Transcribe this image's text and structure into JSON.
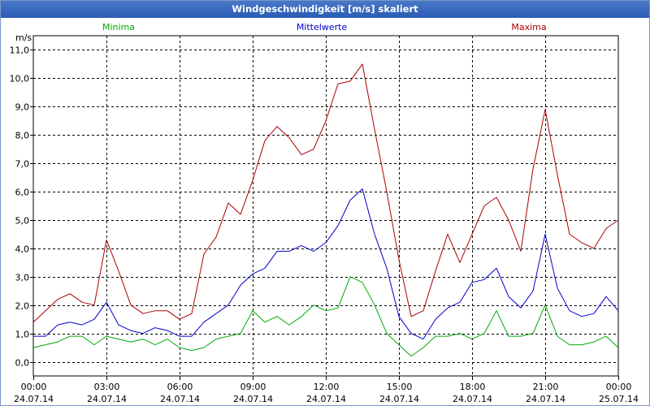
{
  "window": {
    "title": "Windgeschwindigkeit [m/s] skaliert"
  },
  "chart_data": {
    "type": "line",
    "title": "Windgeschwindigkeit [m/s] skaliert",
    "ylabel": "m/s",
    "xlabel": "",
    "ylim": [
      -0.5,
      11.5
    ],
    "xlim": [
      0,
      24
    ],
    "grid": true,
    "y_ticks": [
      "0,0",
      "1,0",
      "2,0",
      "3,0",
      "4,0",
      "5,0",
      "6,0",
      "7,0",
      "8,0",
      "9,0",
      "10,0",
      "11,0"
    ],
    "x_ticks": [
      {
        "time": "00:00",
        "date": "24.07.14"
      },
      {
        "time": "03:00",
        "date": "24.07.14"
      },
      {
        "time": "06:00",
        "date": "24.07.14"
      },
      {
        "time": "09:00",
        "date": "24.07.14"
      },
      {
        "time": "12:00",
        "date": "24.07.14"
      },
      {
        "time": "15:00",
        "date": "24.07.14"
      },
      {
        "time": "18:00",
        "date": "24.07.14"
      },
      {
        "time": "21:00",
        "date": "24.07.14"
      },
      {
        "time": "00:00",
        "date": "25.07.14"
      }
    ],
    "series": [
      {
        "name": "Minima",
        "color": "#00aa00",
        "x": [
          0.0,
          0.5,
          1.0,
          1.5,
          2.0,
          2.5,
          3.0,
          3.5,
          4.0,
          4.5,
          5.0,
          5.5,
          6.0,
          6.5,
          7.0,
          7.5,
          8.0,
          8.5,
          9.0,
          9.5,
          10.0,
          10.5,
          11.0,
          11.5,
          12.0,
          12.5,
          13.0,
          13.5,
          14.0,
          14.5,
          15.0,
          15.5,
          16.0,
          16.5,
          17.0,
          17.5,
          18.0,
          18.5,
          19.0,
          19.5,
          20.0,
          20.5,
          21.0,
          21.5,
          22.0,
          22.5,
          23.0,
          23.5,
          24.0
        ],
        "values": [
          0.5,
          0.6,
          0.7,
          0.9,
          0.9,
          0.6,
          0.9,
          0.8,
          0.7,
          0.8,
          0.6,
          0.8,
          0.5,
          0.4,
          0.5,
          0.8,
          0.9,
          1.0,
          1.8,
          1.4,
          1.6,
          1.3,
          1.6,
          2.0,
          1.8,
          1.9,
          3.0,
          2.8,
          2.0,
          1.0,
          0.6,
          0.2,
          0.5,
          0.9,
          0.9,
          1.0,
          0.8,
          1.0,
          1.8,
          0.9,
          0.9,
          1.0,
          2.0,
          0.9,
          0.6,
          0.6,
          0.7,
          0.9,
          0.5
        ]
      },
      {
        "name": "Mittelwerte",
        "color": "#0000cc",
        "x": [
          0.0,
          0.5,
          1.0,
          1.5,
          2.0,
          2.5,
          3.0,
          3.5,
          4.0,
          4.5,
          5.0,
          5.5,
          6.0,
          6.5,
          7.0,
          7.5,
          8.0,
          8.5,
          9.0,
          9.5,
          10.0,
          10.5,
          11.0,
          11.5,
          12.0,
          12.5,
          13.0,
          13.5,
          14.0,
          14.5,
          15.0,
          15.5,
          16.0,
          16.5,
          17.0,
          17.5,
          18.0,
          18.5,
          19.0,
          19.5,
          20.0,
          20.5,
          21.0,
          21.5,
          22.0,
          22.5,
          23.0,
          23.5,
          24.0
        ],
        "values": [
          0.9,
          0.9,
          1.3,
          1.4,
          1.3,
          1.5,
          2.1,
          1.3,
          1.1,
          1.0,
          1.2,
          1.1,
          0.9,
          0.9,
          1.4,
          1.7,
          2.0,
          2.7,
          3.1,
          3.3,
          3.9,
          3.9,
          4.1,
          3.9,
          4.2,
          4.8,
          5.7,
          6.1,
          4.5,
          3.3,
          1.6,
          1.0,
          0.8,
          1.5,
          1.9,
          2.1,
          2.8,
          2.9,
          3.3,
          2.3,
          1.9,
          2.5,
          4.5,
          2.6,
          1.8,
          1.6,
          1.7,
          2.3,
          1.8
        ]
      },
      {
        "name": "Maxima",
        "color": "#aa0000",
        "x": [
          0.0,
          0.5,
          1.0,
          1.5,
          2.0,
          2.5,
          3.0,
          3.5,
          4.0,
          4.5,
          5.0,
          5.5,
          6.0,
          6.5,
          7.0,
          7.5,
          8.0,
          8.5,
          9.0,
          9.5,
          10.0,
          10.5,
          11.0,
          11.5,
          12.0,
          12.5,
          13.0,
          13.5,
          14.0,
          14.5,
          15.0,
          15.5,
          16.0,
          16.5,
          17.0,
          17.5,
          18.0,
          18.5,
          19.0,
          19.5,
          20.0,
          20.5,
          21.0,
          21.5,
          22.0,
          22.5,
          23.0,
          23.5,
          24.0
        ],
        "values": [
          1.4,
          1.8,
          2.2,
          2.4,
          2.1,
          2.0,
          4.3,
          3.2,
          2.0,
          1.7,
          1.8,
          1.8,
          1.5,
          1.7,
          3.8,
          4.4,
          5.6,
          5.2,
          6.4,
          7.8,
          8.3,
          7.9,
          7.3,
          7.5,
          8.5,
          9.8,
          9.9,
          10.5,
          8.2,
          6.0,
          3.6,
          1.6,
          1.8,
          3.2,
          4.5,
          3.5,
          4.5,
          5.5,
          5.8,
          5.0,
          3.9,
          6.8,
          8.9,
          6.6,
          4.5,
          4.2,
          4.0,
          4.7,
          5.0
        ]
      }
    ]
  }
}
